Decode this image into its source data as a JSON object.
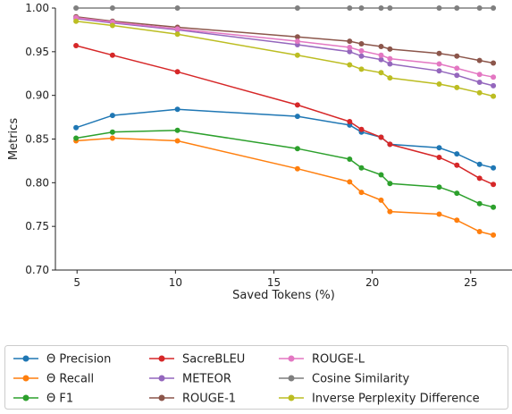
{
  "chart_data": {
    "type": "line",
    "title": "",
    "xlabel": "Saved Tokens (%)",
    "ylabel": "Metrics",
    "xlim": [
      3.9,
      27.1
    ],
    "ylim": [
      0.7,
      1.0
    ],
    "xticks": [
      5,
      10,
      15,
      20,
      25
    ],
    "xtick_labels": [
      "5",
      "10",
      "15",
      "20",
      "25"
    ],
    "yticks": [
      0.7,
      0.75,
      0.8,
      0.85,
      0.9,
      0.95,
      1.0
    ],
    "ytick_labels": [
      "0.70",
      "0.75",
      "0.80",
      "0.85",
      "0.90",
      "0.95",
      "1.00"
    ],
    "grid": false,
    "legend_position": "below plot, three columns",
    "x": [
      4.95,
      6.8,
      10.1,
      16.2,
      18.85,
      19.45,
      20.45,
      20.9,
      23.4,
      24.3,
      25.45,
      26.15
    ],
    "series": [
      {
        "name": "Θ Precision",
        "color": "#1f77b4",
        "values": [
          0.863,
          0.877,
          0.884,
          0.876,
          0.866,
          0.858,
          0.852,
          0.844,
          0.84,
          0.833,
          0.821,
          0.817
        ]
      },
      {
        "name": "Θ Recall",
        "color": "#ff7f0e",
        "values": [
          0.848,
          0.851,
          0.848,
          0.816,
          0.801,
          0.789,
          0.78,
          0.767,
          0.764,
          0.757,
          0.744,
          0.74
        ]
      },
      {
        "name": "Θ F1",
        "color": "#2ca02c",
        "values": [
          0.851,
          0.858,
          0.86,
          0.839,
          0.827,
          0.817,
          0.809,
          0.799,
          0.795,
          0.788,
          0.776,
          0.772
        ]
      },
      {
        "name": "SacreBLEU",
        "color": "#d62728",
        "values": [
          0.957,
          0.946,
          0.927,
          0.889,
          0.87,
          0.861,
          0.852,
          0.844,
          0.829,
          0.82,
          0.805,
          0.798
        ]
      },
      {
        "name": "METEOR",
        "color": "#9467bd",
        "values": [
          0.988,
          0.983,
          0.975,
          0.958,
          0.95,
          0.945,
          0.941,
          0.936,
          0.928,
          0.923,
          0.915,
          0.911
        ]
      },
      {
        "name": "ROUGE-1",
        "color": "#8c564b",
        "values": [
          0.99,
          0.985,
          0.978,
          0.967,
          0.962,
          0.959,
          0.956,
          0.953,
          0.948,
          0.945,
          0.94,
          0.937
        ]
      },
      {
        "name": "ROUGE-L",
        "color": "#e377c2",
        "values": [
          0.989,
          0.984,
          0.976,
          0.962,
          0.955,
          0.951,
          0.946,
          0.942,
          0.936,
          0.931,
          0.924,
          0.921
        ]
      },
      {
        "name": "Cosine Similarity",
        "color": "#7f7f7f",
        "values": [
          1.0,
          1.0,
          1.0,
          1.0,
          1.0,
          1.0,
          1.0,
          1.0,
          1.0,
          1.0,
          1.0,
          1.0
        ]
      },
      {
        "name": "Inverse Perplexity Difference",
        "color": "#bcbd22",
        "values": [
          0.985,
          0.98,
          0.97,
          0.946,
          0.935,
          0.93,
          0.926,
          0.92,
          0.913,
          0.909,
          0.903,
          0.899
        ]
      }
    ]
  }
}
